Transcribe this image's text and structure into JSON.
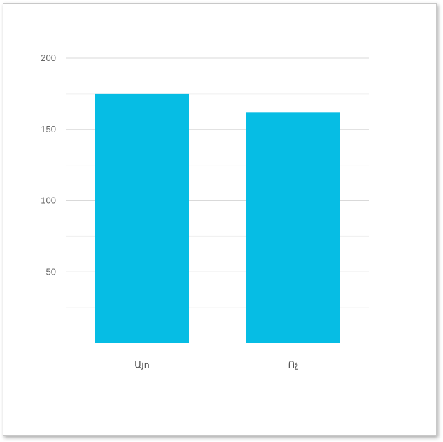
{
  "chart_data": {
    "type": "bar",
    "categories": [
      "Այո",
      "Ոչ"
    ],
    "values": [
      175,
      162
    ],
    "title": "",
    "xlabel": "",
    "ylabel": "",
    "ylim": [
      0,
      200
    ],
    "yticks": [
      50,
      100,
      150,
      200
    ],
    "minor_gridlines": [
      25,
      75,
      125,
      175
    ],
    "grid": true,
    "legend": "none",
    "colors": {
      "bar": "#06bde4",
      "grid_major": "#d9d9d9",
      "grid_minor": "#efefef"
    }
  }
}
